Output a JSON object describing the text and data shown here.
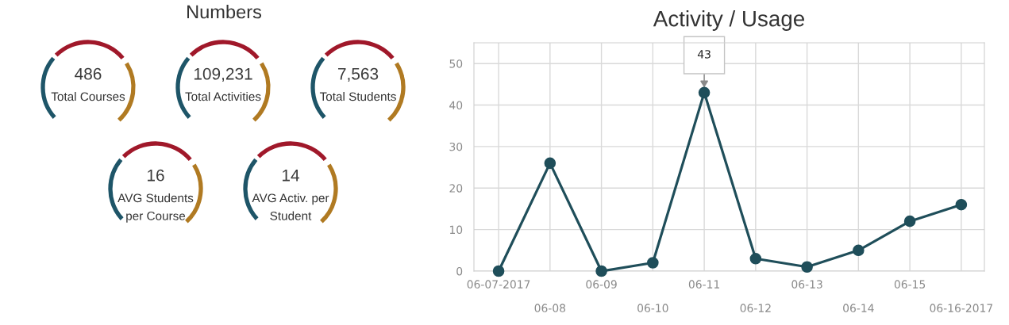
{
  "chart_data": [
    {
      "type": "other",
      "title": "Numbers",
      "annotations": [
        "486",
        "Total Courses",
        "109,231",
        "Total Activities",
        "7,563",
        "Total Students",
        "16",
        "AVG Students\nper Course",
        "14",
        "AVG Activ. per\nStudent"
      ]
    },
    {
      "type": "line",
      "title": "Activity / Usage",
      "categories": [
        "06-07-2017",
        "06-08",
        "06-09",
        "06-10",
        "06-11",
        "06-12",
        "06-13",
        "06-14",
        "06-15",
        "06-16-2017"
      ],
      "values": [
        0,
        26,
        0,
        2,
        43,
        3,
        1,
        5,
        12,
        16
      ],
      "color": "#1f4e5a",
      "ylim": [
        0,
        55
      ],
      "yticks": [
        0,
        10,
        20,
        30,
        40,
        50
      ],
      "grid": true,
      "marker": "circle",
      "line_style": "solid",
      "annotations": [
        {
          "text": "43",
          "x": "06-11",
          "y": 43
        }
      ]
    }
  ]
}
